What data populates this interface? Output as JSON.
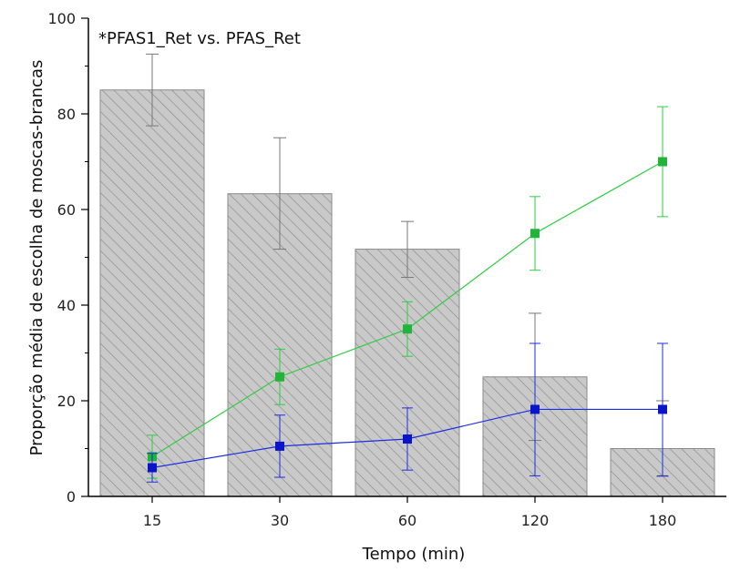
{
  "chart_data": {
    "type": "bar",
    "title": "",
    "annotation": "*PFAS1_Ret vs. PFAS_Ret",
    "xlabel": "Tempo (min)",
    "ylabel": "Proporção média de escolha de moscas-brancas",
    "categories": [
      "15",
      "30",
      "60",
      "120",
      "180"
    ],
    "ylim": [
      0,
      100
    ],
    "yticks": [
      0,
      20,
      40,
      60,
      80,
      100
    ],
    "grid": false,
    "bars": {
      "values": [
        85,
        63.3,
        51.7,
        25,
        10
      ],
      "error_low": [
        77.5,
        51.7,
        45.8,
        11.7,
        4.2
      ],
      "error_high": [
        92.5,
        75,
        57.5,
        38.3,
        20
      ],
      "fill_color": "#c9c9c9",
      "hatch_color": "#8a8a8a",
      "error_color": "#777777"
    },
    "series": [
      {
        "values": [
          8.3,
          25,
          35,
          55,
          70
        ],
        "error_low": [
          3.8,
          19.2,
          29.3,
          47.3,
          58.5
        ],
        "error_high": [
          12.8,
          30.8,
          40.7,
          62.7,
          81.5
        ],
        "color": "#2ecc40",
        "marker_color": "#22b33a"
      },
      {
        "values": [
          6,
          10.5,
          12,
          18.2,
          18.2
        ],
        "error_low": [
          3,
          4,
          5.5,
          4.3,
          4.3
        ],
        "error_high": [
          9,
          17,
          18.5,
          32,
          32
        ],
        "color": "#1a2ee0",
        "marker_color": "#0a14c8"
      }
    ]
  }
}
